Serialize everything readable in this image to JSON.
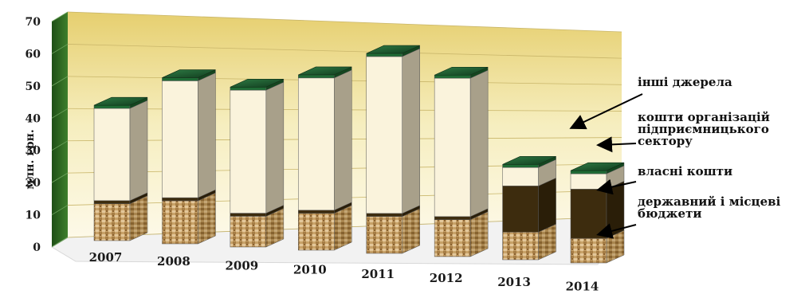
{
  "chart_data": {
    "type": "bar",
    "stacked": true,
    "three_d": true,
    "ylabel": "млн. грн.",
    "ylim": [
      0,
      70
    ],
    "yticks": [
      "0",
      "10",
      "20",
      "30",
      "40",
      "50",
      "60",
      "70"
    ],
    "categories": [
      "2007",
      "2008",
      "2009",
      "2010",
      "2011",
      "2012",
      "2013",
      "2014"
    ],
    "series": [
      {
        "name": "державний і місцеві бюджети",
        "values": [
          12,
          14,
          10,
          12,
          12,
          12,
          9,
          8
        ]
      },
      {
        "name": "власні кошти",
        "values": [
          1,
          1,
          1,
          1,
          1,
          1,
          15,
          16
        ]
      },
      {
        "name": "кошти організацій підприємницького сектору",
        "values": [
          30,
          38,
          40,
          43,
          51,
          45,
          6,
          5
        ]
      },
      {
        "name": "інші джерела",
        "values": [
          1,
          1,
          1,
          1,
          1,
          1,
          1,
          1
        ]
      }
    ],
    "legend_position": "right",
    "colors": {
      "budget": "#c9a46a",
      "own": "#3d2c0e",
      "enterprise": "#faf3dc",
      "other": "#1f6b35",
      "wall_left": "#2f6a25",
      "wall_back": "#efe2a0"
    }
  },
  "legend": {
    "other": "інші джерела",
    "enterprise": "кошти організацій\nпідприємницького\nсектору",
    "own": "власні кошти",
    "budget": "державний і місцеві\nбюджети"
  }
}
